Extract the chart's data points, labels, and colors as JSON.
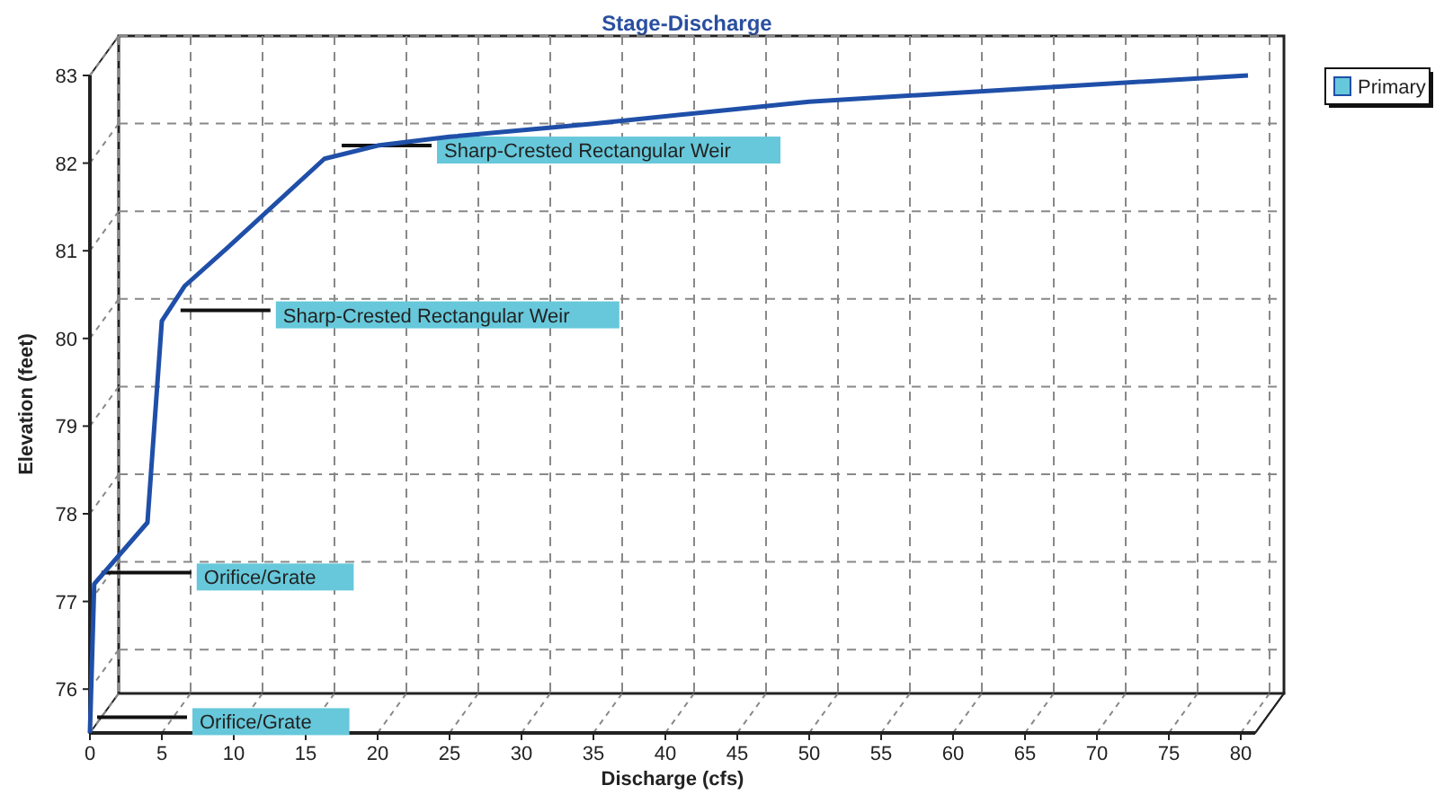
{
  "chart_data": {
    "type": "line",
    "title": "Stage-Discharge",
    "xlabel": "Discharge  (cfs)",
    "ylabel": "Elevation  (feet)",
    "x": [
      0,
      0.3,
      4,
      5,
      6.6,
      10,
      16.3,
      20,
      25,
      35,
      50,
      65,
      80.5
    ],
    "series": [
      {
        "name": "Primary",
        "color": "#1f4fa8",
        "values": [
          75.5,
          77.2,
          77.9,
          80.2,
          80.6,
          81.1,
          82.05,
          82.2,
          82.3,
          82.45,
          82.7,
          82.85,
          83.0
        ]
      }
    ],
    "xlim": [
      0,
      81
    ],
    "xticks": [
      0,
      5,
      10,
      15,
      20,
      25,
      30,
      35,
      40,
      45,
      50,
      55,
      60,
      65,
      70,
      75,
      80
    ],
    "ylim": [
      75.5,
      83
    ],
    "yticks": [
      76,
      77,
      78,
      79,
      80,
      81,
      82,
      83
    ],
    "grid": true,
    "legend": "top right",
    "marker": "none",
    "line_style": "solid",
    "annotations": [
      {
        "text": "Orifice/Grate",
        "x": 0.5,
        "y": 75.68
      },
      {
        "text": "Orifice/Grate",
        "x": 0.8,
        "y": 77.33
      },
      {
        "text": "Sharp-Crested Rectangular Weir",
        "x": 6.3,
        "y": 80.32
      },
      {
        "text": "Sharp-Crested Rectangular Weir",
        "x": 17.5,
        "y": 82.2
      }
    ]
  }
}
